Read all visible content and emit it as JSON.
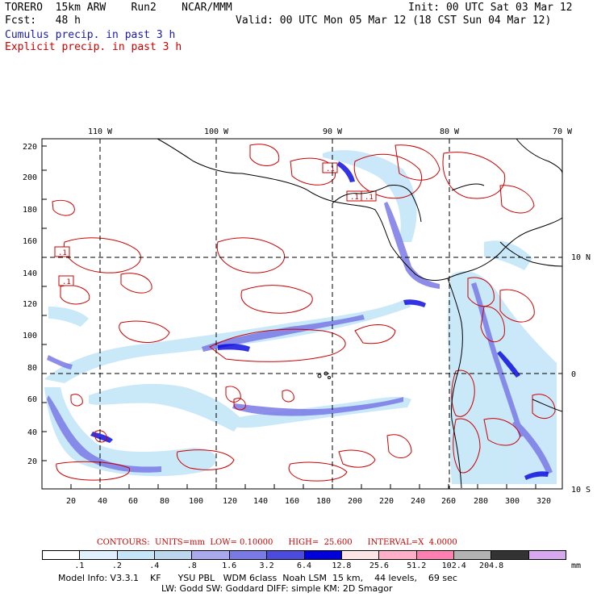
{
  "header": {
    "model_title": "TORERO  15km ARW    Run2    NCAR/MMM",
    "init_text": "Init: 00 UTC Sat 03 Mar 12",
    "fcst_text": "Fcst:   48 h",
    "valid_text": "Valid: 00 UTC Mon 05 Mar 12 (18 CST Sun 04 Mar 12)",
    "cumulus_label": "Cumulus precip. in past 3 h",
    "explicit_label": "Explicit precip. in past 3 h"
  },
  "colors": {
    "cumulus": "#1a1ab0",
    "explicit": "#cc0000",
    "coast": "#000000",
    "grid": "#000000"
  },
  "map": {
    "x_ticks": [
      "20",
      "40",
      "60",
      "80",
      "100",
      "120",
      "140",
      "160",
      "180",
      "200",
      "220",
      "240",
      "260",
      "280",
      "300",
      "320"
    ],
    "y_ticks": [
      "20",
      "40",
      "60",
      "80",
      "100",
      "120",
      "140",
      "160",
      "180",
      "200",
      "220"
    ],
    "lon_labels": [
      "110 W",
      "100 W",
      "90 W",
      "80 W",
      "70 W"
    ],
    "lat_labels": [
      "10 N",
      "0",
      "10 S"
    ],
    "box_labels": [
      ".1",
      ".1",
      ".1",
      ".1",
      ".1"
    ]
  },
  "contours_note": {
    "text": "CONTOURS:  UNITS=mm  LOW= 0.10000      HIGH=  25.600      INTERVAL=X  4.0000"
  },
  "colorbar": {
    "colors": [
      "#ffffff",
      "#e0f0ff",
      "#c4e6f8",
      "#bcd6ee",
      "#a9a9ee",
      "#7a7ae6",
      "#4b4be0",
      "#0000dd",
      "#ffe6e6",
      "#ffb0c8",
      "#ff80b0",
      "#b3b3b3",
      "#333333",
      "#d8a8f0"
    ],
    "labels": [
      ".1",
      ".2",
      ".4",
      ".8",
      "1.6",
      "3.2",
      "6.4",
      "12.8",
      "25.6",
      "51.2",
      "102.4",
      "204.8"
    ],
    "unit": "mm"
  },
  "model_info": {
    "line1": "Model Info: V3.3.1    KF      YSU PBL   WDM 6class  Noah LSM  15 km,    44 levels,    69 sec",
    "line2": "LW: Godd SW: Goddard DIFF: simple KM: 2D Smagor"
  }
}
